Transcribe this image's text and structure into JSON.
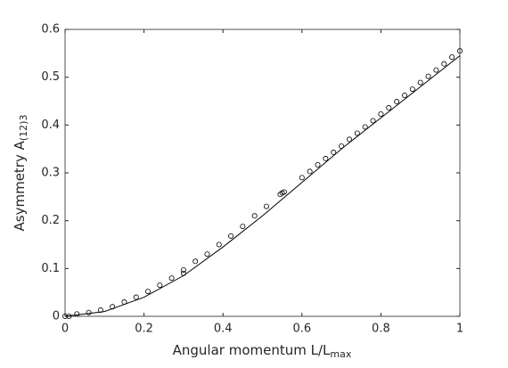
{
  "chart_data": {
    "type": "scatter",
    "xlabel": "Angular momentum L/L",
    "xlabel_sub": "max",
    "ylabel": "Asymmetry A",
    "ylabel_sub": "(12)3",
    "xlim": [
      0,
      1
    ],
    "ylim": [
      0,
      0.6
    ],
    "xticks": [
      0,
      0.2,
      0.4,
      0.6,
      0.8,
      1
    ],
    "yticks": [
      0,
      0.1,
      0.2,
      0.3,
      0.4,
      0.5,
      0.6
    ],
    "series": [
      {
        "type": "scatter",
        "color": "#000000",
        "x": [
          0,
          0.01,
          0.03,
          0.06,
          0.09,
          0.12,
          0.15,
          0.18,
          0.21,
          0.24,
          0.27,
          0.3,
          0.3,
          0.33,
          0.36,
          0.39,
          0.42,
          0.45,
          0.48,
          0.51,
          0.545,
          0.55,
          0.555,
          0.6,
          0.62,
          0.64,
          0.66,
          0.68,
          0.7,
          0.72,
          0.74,
          0.76,
          0.78,
          0.8,
          0.82,
          0.84,
          0.86,
          0.88,
          0.9,
          0.92,
          0.94,
          0.96,
          0.98,
          1
        ],
        "values": [
          0,
          0,
          0.005,
          0.008,
          0.013,
          0.02,
          0.03,
          0.04,
          0.052,
          0.065,
          0.08,
          0.09,
          0.097,
          0.115,
          0.13,
          0.15,
          0.168,
          0.188,
          0.21,
          0.23,
          0.255,
          0.258,
          0.26,
          0.29,
          0.303,
          0.317,
          0.33,
          0.343,
          0.356,
          0.37,
          0.383,
          0.396,
          0.409,
          0.423,
          0.436,
          0.449,
          0.462,
          0.475,
          0.489,
          0.502,
          0.515,
          0.528,
          0.542,
          0.555
        ]
      },
      {
        "type": "line",
        "color": "#000000",
        "x": [
          0,
          0.1,
          0.2,
          0.3,
          0.4,
          0.5,
          0.6,
          0.7,
          0.8,
          0.9,
          1
        ],
        "values": [
          0,
          0.01,
          0.04,
          0.085,
          0.145,
          0.21,
          0.28,
          0.35,
          0.415,
          0.48,
          0.545
        ]
      }
    ]
  }
}
